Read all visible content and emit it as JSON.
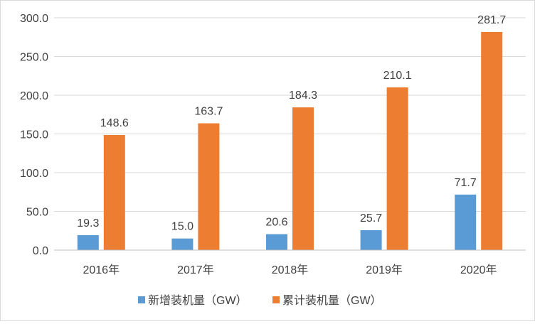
{
  "chart_data": {
    "type": "bar",
    "categories": [
      "2016年",
      "2017年",
      "2018年",
      "2019年",
      "2020年"
    ],
    "series": [
      {
        "name": "新增装机量（GW）",
        "values": [
          19.3,
          15.0,
          20.6,
          25.7,
          71.7
        ],
        "color": "#5B9BD5"
      },
      {
        "name": "累计装机量（GW）",
        "values": [
          148.6,
          163.7,
          184.3,
          210.1,
          281.7
        ],
        "color": "#ED7D31"
      }
    ],
    "y_ticks": [
      "0.0",
      "50.0",
      "100.0",
      "150.0",
      "200.0",
      "250.0",
      "300.0"
    ],
    "ylim": [
      0,
      300
    ],
    "grid": true,
    "legend_position": "bottom",
    "title": "",
    "xlabel": "",
    "ylabel": ""
  }
}
